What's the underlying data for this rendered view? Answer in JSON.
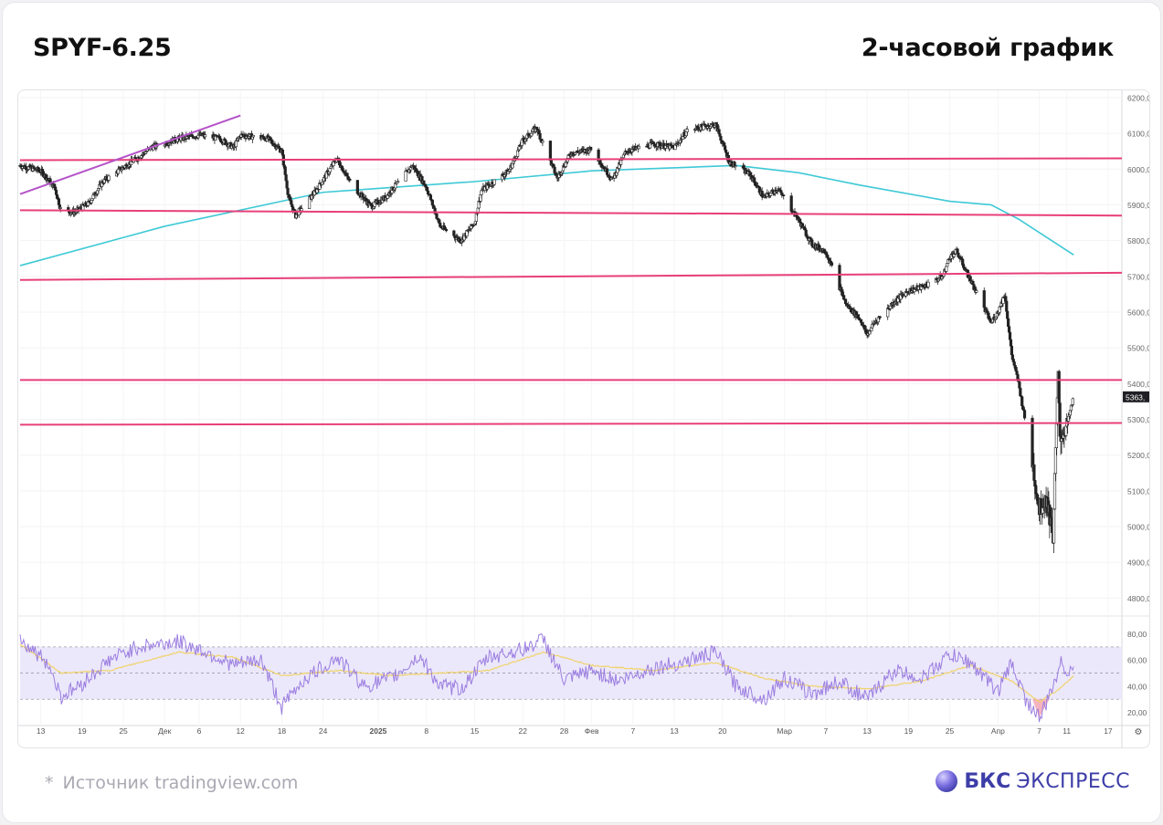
{
  "header": {
    "ticker": "SPYF-6.25",
    "timeframe": "2-часовой график"
  },
  "footer": {
    "source_star": "*",
    "source_text": "Источник tradingview.com",
    "brand_strong": "БКС",
    "brand_light": "ЭКСПРЕСС"
  },
  "colors": {
    "level_line": "#e83f7a",
    "trend_line": "#b553c9",
    "moving_average": "#3ec9d6",
    "rsi_line": "#9b7ee0",
    "rsi_signal": "#f0d36a",
    "rsi_band": "#ece8fb",
    "oversold_fill": "#f1a0b0",
    "brand": "#3d3da8"
  },
  "chart_data": [
    {
      "type": "candlestick",
      "title": "",
      "interval": "2h",
      "ylim": [
        4750,
        6210
      ],
      "y_ticks": [
        "6200,00",
        "6100,00",
        "6000,00",
        "5900,00",
        "5800,00",
        "5700,00",
        "5600,00",
        "5500,00",
        "5400,00",
        "5300,00",
        "5200,00",
        "5100,00",
        "5000,00",
        "4900,00",
        "4800,00"
      ],
      "y_tick_values": [
        6200,
        6100,
        6000,
        5900,
        5800,
        5700,
        5600,
        5500,
        5400,
        5300,
        5200,
        5100,
        5000,
        4900,
        4800
      ],
      "last_price_label": "5363,",
      "last_price": 5363,
      "x_ticks": [
        "13",
        "19",
        "25",
        "Дек",
        "6",
        "12",
        "18",
        "24",
        "2025",
        "8",
        "15",
        "22",
        "28",
        "Фев",
        "7",
        "13",
        "20",
        "Мар",
        "7",
        "13",
        "19",
        "25",
        "Апр",
        "7",
        "11",
        "17"
      ],
      "x_tick_dates": [
        "2024-11-13",
        "2024-11-19",
        "2024-11-25",
        "2024-12-01",
        "2024-12-06",
        "2024-12-12",
        "2024-12-18",
        "2024-12-24",
        "2025-01-01",
        "2025-01-08",
        "2025-01-15",
        "2025-01-22",
        "2025-01-28",
        "2025-02-01",
        "2025-02-07",
        "2025-02-13",
        "2025-02-20",
        "2025-03-01",
        "2025-03-07",
        "2025-03-13",
        "2025-03-19",
        "2025-03-25",
        "2025-04-01",
        "2025-04-07",
        "2025-04-11",
        "2025-04-17"
      ],
      "x_range": [
        "2024-11-10",
        "2025-04-19"
      ],
      "price_path": [
        [
          "2024-11-10",
          6010
        ],
        [
          "2024-11-13",
          5995
        ],
        [
          "2024-11-15",
          5950
        ],
        [
          "2024-11-16",
          5880
        ],
        [
          "2024-11-18",
          5880
        ],
        [
          "2024-11-20",
          5905
        ],
        [
          "2024-11-22",
          5965
        ],
        [
          "2024-11-25",
          6005
        ],
        [
          "2024-11-27",
          6030
        ],
        [
          "2024-11-29",
          6060
        ],
        [
          "2024-12-03",
          6085
        ],
        [
          "2024-12-06",
          6095
        ],
        [
          "2024-12-09",
          6085
        ],
        [
          "2024-12-11",
          6060
        ],
        [
          "2024-12-12",
          6095
        ],
        [
          "2024-12-16",
          6085
        ],
        [
          "2024-12-18",
          6050
        ],
        [
          "2024-12-19",
          5920
        ],
        [
          "2024-12-20",
          5870
        ],
        [
          "2024-12-23",
          5940
        ],
        [
          "2024-12-26",
          6030
        ],
        [
          "2024-12-28",
          5960
        ],
        [
          "2024-12-31",
          5895
        ],
        [
          "2025-01-02",
          5920
        ],
        [
          "2025-01-06",
          6010
        ],
        [
          "2025-01-08",
          5950
        ],
        [
          "2025-01-10",
          5840
        ],
        [
          "2025-01-13",
          5800
        ],
        [
          "2025-01-15",
          5850
        ],
        [
          "2025-01-16",
          5940
        ],
        [
          "2025-01-20",
          5995
        ],
        [
          "2025-01-22",
          6080
        ],
        [
          "2025-01-24",
          6115
        ],
        [
          "2025-01-27",
          5975
        ],
        [
          "2025-01-29",
          6045
        ],
        [
          "2025-02-01",
          6055
        ],
        [
          "2025-02-04",
          5970
        ],
        [
          "2025-02-06",
          6050
        ],
        [
          "2025-02-10",
          6070
        ],
        [
          "2025-02-13",
          6060
        ],
        [
          "2025-02-15",
          6110
        ],
        [
          "2025-02-19",
          6125
        ],
        [
          "2025-02-21",
          6020
        ],
        [
          "2025-02-24",
          5985
        ],
        [
          "2025-02-26",
          5920
        ],
        [
          "2025-02-28",
          5945
        ],
        [
          "2025-03-03",
          5860
        ],
        [
          "2025-03-05",
          5790
        ],
        [
          "2025-03-07",
          5770
        ],
        [
          "2025-03-10",
          5620
        ],
        [
          "2025-03-12",
          5580
        ],
        [
          "2025-03-13",
          5535
        ],
        [
          "2025-03-14",
          5570
        ],
        [
          "2025-03-17",
          5630
        ],
        [
          "2025-03-19",
          5660
        ],
        [
          "2025-03-21",
          5670
        ],
        [
          "2025-03-24",
          5700
        ],
        [
          "2025-03-25",
          5755
        ],
        [
          "2025-03-26",
          5770
        ],
        [
          "2025-03-28",
          5690
        ],
        [
          "2025-03-31",
          5570
        ],
        [
          "2025-04-01",
          5600
        ],
        [
          "2025-04-02",
          5650
        ],
        [
          "2025-04-03",
          5480
        ],
        [
          "2025-04-04",
          5400
        ],
        [
          "2025-04-06",
          5180
        ],
        [
          "2025-04-07",
          5050
        ],
        [
          "2025-04-08",
          5080
        ],
        [
          "2025-04-09",
          4980
        ],
        [
          "2025-04-09T18",
          5430
        ],
        [
          "2025-04-10",
          5250
        ],
        [
          "2025-04-11",
          5280
        ],
        [
          "2025-04-12",
          5363
        ]
      ],
      "horizontal_levels": [
        {
          "price": 6025,
          "price_end": 6030
        },
        {
          "price": 5885,
          "price_end": 5870
        },
        {
          "price": 5690,
          "price_end": 5710
        },
        {
          "price": 5410,
          "price_end": 5410
        },
        {
          "price": 5285,
          "price_end": 5290
        }
      ],
      "trend_line": {
        "start": [
          "2024-11-10",
          5930
        ],
        "end": [
          "2024-12-12",
          6150
        ]
      },
      "moving_average": [
        [
          "2024-11-10",
          5730
        ],
        [
          "2024-12-01",
          5840
        ],
        [
          "2024-12-24",
          5935
        ],
        [
          "2025-01-15",
          5965
        ],
        [
          "2025-02-01",
          5995
        ],
        [
          "2025-02-15",
          6005
        ],
        [
          "2025-02-22",
          6010
        ],
        [
          "2025-03-03",
          5990
        ],
        [
          "2025-03-12",
          5955
        ],
        [
          "2025-03-25",
          5910
        ],
        [
          "2025-03-31",
          5900
        ],
        [
          "2025-04-04",
          5860
        ],
        [
          "2025-04-08",
          5810
        ],
        [
          "2025-04-12",
          5760
        ]
      ]
    },
    {
      "type": "line",
      "title": "",
      "ylim": [
        10,
        88
      ],
      "y_ticks": [
        "80,00",
        "60,00",
        "40,00",
        "20,00"
      ],
      "y_tick_values": [
        80,
        60,
        40,
        20
      ],
      "band": [
        30,
        70
      ],
      "midline": 50,
      "rsi_path": [
        [
          "2024-11-10",
          76
        ],
        [
          "2024-11-14",
          58
        ],
        [
          "2024-11-16",
          32
        ],
        [
          "2024-11-19",
          42
        ],
        [
          "2024-11-23",
          60
        ],
        [
          "2024-11-27",
          70
        ],
        [
          "2024-12-03",
          74
        ],
        [
          "2024-12-07",
          66
        ],
        [
          "2024-12-11",
          56
        ],
        [
          "2024-12-15",
          60
        ],
        [
          "2024-12-18",
          24
        ],
        [
          "2024-12-21",
          44
        ],
        [
          "2024-12-26",
          62
        ],
        [
          "2024-12-30",
          40
        ],
        [
          "2025-01-03",
          46
        ],
        [
          "2025-01-07",
          63
        ],
        [
          "2025-01-10",
          40
        ],
        [
          "2025-01-13",
          38
        ],
        [
          "2025-01-17",
          62
        ],
        [
          "2025-01-22",
          68
        ],
        [
          "2025-01-25",
          76
        ],
        [
          "2025-01-28",
          44
        ],
        [
          "2025-02-01",
          52
        ],
        [
          "2025-02-05",
          44
        ],
        [
          "2025-02-10",
          54
        ],
        [
          "2025-02-14",
          58
        ],
        [
          "2025-02-19",
          66
        ],
        [
          "2025-02-22",
          40
        ],
        [
          "2025-02-26",
          30
        ],
        [
          "2025-03-01",
          46
        ],
        [
          "2025-03-05",
          34
        ],
        [
          "2025-03-09",
          44
        ],
        [
          "2025-03-13",
          30
        ],
        [
          "2025-03-17",
          52
        ],
        [
          "2025-03-21",
          46
        ],
        [
          "2025-03-25",
          64
        ],
        [
          "2025-03-28",
          58
        ],
        [
          "2025-04-01",
          36
        ],
        [
          "2025-04-03",
          58
        ],
        [
          "2025-04-05",
          30
        ],
        [
          "2025-04-07",
          16
        ],
        [
          "2025-04-08",
          26
        ],
        [
          "2025-04-09",
          40
        ],
        [
          "2025-04-10",
          58
        ],
        [
          "2025-04-11",
          52
        ],
        [
          "2025-04-12",
          55
        ]
      ],
      "signal_path": [
        [
          "2024-11-10",
          72
        ],
        [
          "2024-11-16",
          50
        ],
        [
          "2024-11-23",
          52
        ],
        [
          "2024-12-03",
          66
        ],
        [
          "2024-12-11",
          62
        ],
        [
          "2024-12-18",
          48
        ],
        [
          "2024-12-26",
          52
        ],
        [
          "2025-01-03",
          48
        ],
        [
          "2025-01-10",
          50
        ],
        [
          "2025-01-17",
          52
        ],
        [
          "2025-01-25",
          66
        ],
        [
          "2025-02-01",
          56
        ],
        [
          "2025-02-10",
          52
        ],
        [
          "2025-02-19",
          58
        ],
        [
          "2025-02-26",
          46
        ],
        [
          "2025-03-05",
          40
        ],
        [
          "2025-03-13",
          38
        ],
        [
          "2025-03-21",
          44
        ],
        [
          "2025-03-28",
          56
        ],
        [
          "2025-04-03",
          44
        ],
        [
          "2025-04-07",
          28
        ],
        [
          "2025-04-10",
          38
        ],
        [
          "2025-04-12",
          48
        ]
      ]
    }
  ]
}
